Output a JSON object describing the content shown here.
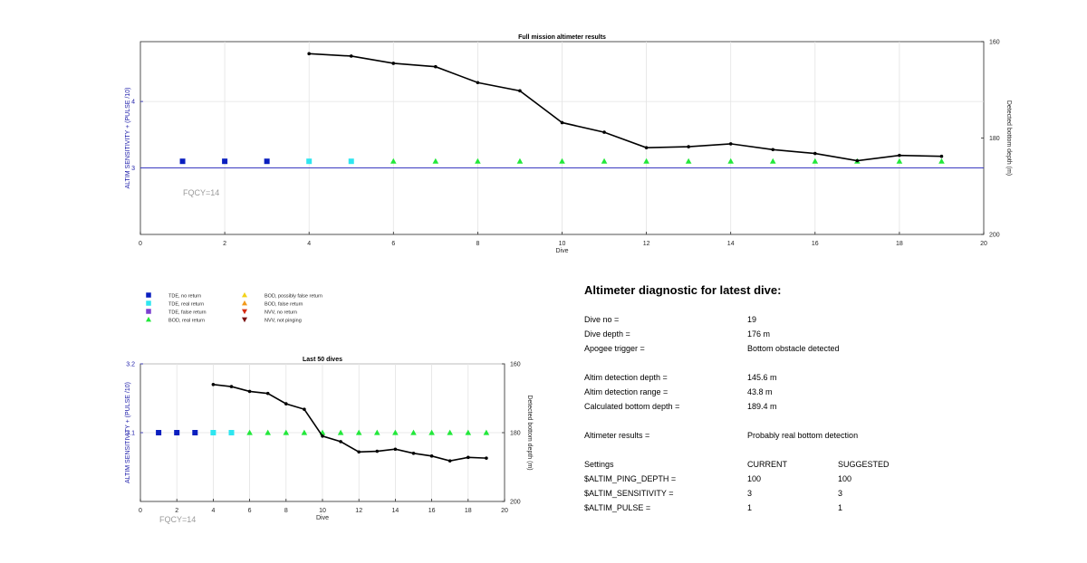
{
  "chart_data": [
    {
      "type": "line",
      "title": "Full mission altimeter results",
      "xlabel": "Dive",
      "ylabel_left": "ALTIM SENSITIVITY + (PULSE /10)",
      "ylabel_right": "Detected bottom depth (m)",
      "xlim": [
        0,
        20
      ],
      "xticks": [
        0,
        2,
        4,
        6,
        8,
        10,
        12,
        14,
        16,
        18,
        20
      ],
      "ylim_left": [
        2,
        4.9
      ],
      "yticks_left": [
        3,
        4
      ],
      "ylim_right": [
        160,
        200
      ],
      "right_axis_reversed": true,
      "yticks_right": [
        160,
        180,
        200
      ],
      "grid": true,
      "annotation": "FQCY=14",
      "sensitivity_line": 3,
      "series": [
        {
          "name": "TDE, no return",
          "marker": "square",
          "color": "#0a1fbf",
          "x": [
            1,
            2,
            3
          ],
          "y": [
            3.1,
            3.1,
            3.1
          ]
        },
        {
          "name": "TDE, real return",
          "marker": "square",
          "color": "#2ee6f0",
          "x": [
            4,
            5
          ],
          "y": [
            3.1,
            3.1
          ]
        },
        {
          "name": "BOD, real return",
          "marker": "triangle",
          "color": "#22e83a",
          "x": [
            6,
            7,
            8,
            9,
            10,
            11,
            12,
            13,
            14,
            15,
            16,
            17,
            18,
            19
          ],
          "y": [
            3.1,
            3.1,
            3.1,
            3.1,
            3.1,
            3.1,
            3.1,
            3.1,
            3.1,
            3.1,
            3.1,
            3.1,
            3.1,
            3.1
          ]
        },
        {
          "name": "Detected bottom depth",
          "marker": "dot",
          "color": "#000000",
          "axis": "right",
          "x": [
            4,
            5,
            6,
            7,
            8,
            9,
            10,
            11,
            12,
            13,
            14,
            15,
            16,
            17,
            18,
            19
          ],
          "y": [
            162.5,
            163.0,
            164.5,
            165.2,
            168.5,
            170.2,
            176.8,
            178.8,
            182.0,
            181.8,
            181.2,
            182.4,
            183.2,
            184.7,
            183.6,
            183.8
          ]
        }
      ]
    },
    {
      "type": "line",
      "title": "Last 50 dives",
      "xlabel": "Dive",
      "ylabel_left": "ALTIM SENSITIVITY + (PULSE /10)",
      "ylabel_right": "Detected bottom depth (m)",
      "xlim": [
        0,
        20
      ],
      "xticks": [
        0,
        2,
        4,
        6,
        8,
        10,
        12,
        14,
        16,
        18,
        20
      ],
      "ylim_left": [
        3.0,
        3.2
      ],
      "yticks_left": [
        3.1,
        3.2
      ],
      "ylim_right": [
        160,
        200
      ],
      "right_axis_reversed": true,
      "yticks_right": [
        160,
        180,
        200
      ],
      "grid": true,
      "annotation": "FQCY=14",
      "series": [
        {
          "name": "TDE, no return",
          "marker": "square",
          "color": "#0a1fbf",
          "x": [
            1,
            2,
            3
          ],
          "y": [
            3.1,
            3.1,
            3.1
          ]
        },
        {
          "name": "TDE, real return",
          "marker": "square",
          "color": "#2ee6f0",
          "x": [
            4,
            5
          ],
          "y": [
            3.1,
            3.1
          ]
        },
        {
          "name": "BOD, real return",
          "marker": "triangle",
          "color": "#22e83a",
          "x": [
            6,
            7,
            8,
            9,
            10,
            11,
            12,
            13,
            14,
            15,
            16,
            17,
            18,
            19
          ],
          "y": [
            3.1,
            3.1,
            3.1,
            3.1,
            3.1,
            3.1,
            3.1,
            3.1,
            3.1,
            3.1,
            3.1,
            3.1,
            3.1,
            3.1
          ]
        },
        {
          "name": "Detected bottom depth",
          "marker": "dot",
          "color": "#000000",
          "axis": "right",
          "x": [
            4,
            5,
            6,
            7,
            8,
            9,
            10,
            11,
            12,
            13,
            14,
            15,
            16,
            17,
            18,
            19
          ],
          "y": [
            166.0,
            166.6,
            168.0,
            168.6,
            171.6,
            173.2,
            181.0,
            182.6,
            185.6,
            185.4,
            184.8,
            186.0,
            186.8,
            188.2,
            187.2,
            187.4
          ]
        }
      ]
    }
  ],
  "legend": [
    {
      "label": "TDE, no return",
      "marker": "square",
      "color": "#0a1fbf"
    },
    {
      "label": "TDE, real return",
      "marker": "square",
      "color": "#2ee6f0"
    },
    {
      "label": "TDE, false return",
      "marker": "square",
      "color": "#7b3fd0"
    },
    {
      "label": "BOD, real return",
      "marker": "triangle",
      "color": "#22e83a"
    },
    {
      "label": "BOD, possibly false return",
      "marker": "triangle",
      "color": "#f2d21b"
    },
    {
      "label": "BOD, false return",
      "marker": "triangle",
      "color": "#f29a1b"
    },
    {
      "label": "NVV, no return",
      "marker": "triangle-down",
      "color": "#d62a10"
    },
    {
      "label": "NVV, not pinging",
      "marker": "triangle-down",
      "color": "#7a1010"
    }
  ],
  "diagnostic": {
    "title": "Altimeter diagnostic for latest dive:",
    "dive_no_label": "Dive no =",
    "dive_no": "19",
    "dive_depth_label": "Dive depth =",
    "dive_depth": "176 m",
    "apogee_label": "Apogee trigger =",
    "apogee": "Bottom obstacle detected",
    "det_depth_label": "Altim detection depth =",
    "det_depth": "145.6 m",
    "det_range_label": "Altim detection range =",
    "det_range": "43.8 m",
    "calc_depth_label": "Calculated bottom depth =",
    "calc_depth": "189.4 m",
    "results_label": "Altimeter results =",
    "results": "Probably real bottom detection",
    "settings_label": "Settings",
    "current_label": "CURRENT",
    "suggested_label": "SUGGESTED",
    "settings": [
      {
        "name": "$ALTIM_PING_DEPTH =",
        "current": "100",
        "suggested": "100"
      },
      {
        "name": "$ALTIM_SENSITIVITY =",
        "current": "3",
        "suggested": "3"
      },
      {
        "name": "$ALTIM_PULSE =",
        "current": "1",
        "suggested": "1"
      }
    ]
  }
}
